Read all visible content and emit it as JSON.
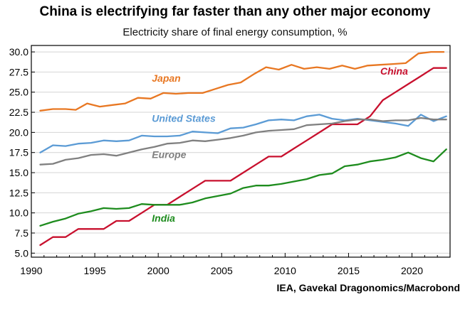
{
  "chart_data": {
    "type": "line",
    "title": "China is electrifying far faster than any other major economy",
    "subtitle": "Electricity share of final energy consumption, %",
    "source": "IEA, Gavekal Dragonomics/Macrobond",
    "xlabel": "",
    "ylabel": "",
    "xlim": [
      1990,
      2023
    ],
    "ylim": [
      4.5,
      30.8
    ],
    "grid": true,
    "x_ticks": [
      1990,
      1995,
      2000,
      2005,
      2010,
      2015,
      2020
    ],
    "y_ticks": [
      "5.0",
      "7.5",
      "10.0",
      "12.5",
      "15.0",
      "17.5",
      "20.0",
      "22.5",
      "25.0",
      "27.5",
      "30.0"
    ],
    "series": [
      {
        "name": "Japan",
        "color": "#e87722",
        "points": [
          [
            1990.7,
            22.7
          ],
          [
            1991.7,
            22.9
          ],
          [
            1992.7,
            22.9
          ],
          [
            1993.5,
            22.8
          ],
          [
            1994.4,
            23.6
          ],
          [
            1995.4,
            23.2
          ],
          [
            1996.4,
            23.4
          ],
          [
            1997.4,
            23.6
          ],
          [
            1998.4,
            24.3
          ],
          [
            1999.4,
            24.2
          ],
          [
            2000.4,
            24.9
          ],
          [
            2001.4,
            24.8
          ],
          [
            2002.4,
            24.9
          ],
          [
            2003.5,
            24.9
          ],
          [
            2004.5,
            25.4
          ],
          [
            2005.5,
            25.9
          ],
          [
            2006.5,
            26.2
          ],
          [
            2007.5,
            27.2
          ],
          [
            2008.5,
            28.1
          ],
          [
            2009.5,
            27.8
          ],
          [
            2010.5,
            28.4
          ],
          [
            2011.5,
            27.9
          ],
          [
            2012.5,
            28.1
          ],
          [
            2013.5,
            27.9
          ],
          [
            2014.5,
            28.3
          ],
          [
            2015.5,
            27.9
          ],
          [
            2016.5,
            28.3
          ],
          [
            2017.5,
            28.4
          ],
          [
            2018.5,
            28.5
          ],
          [
            2019.5,
            28.6
          ],
          [
            2020.5,
            29.8
          ],
          [
            2021.5,
            30.0
          ],
          [
            2022.5,
            30.0
          ]
        ]
      },
      {
        "name": "China",
        "color": "#c8102e",
        "points": [
          [
            1990.7,
            6.0
          ],
          [
            1991.7,
            7.0
          ],
          [
            1992.7,
            7.0
          ],
          [
            1993.7,
            8.0
          ],
          [
            1994.7,
            8.0
          ],
          [
            1995.7,
            8.0
          ],
          [
            1996.7,
            9.0
          ],
          [
            1997.7,
            9.0
          ],
          [
            1998.7,
            10.0
          ],
          [
            1999.7,
            11.0
          ],
          [
            2000.7,
            11.0
          ],
          [
            2001.7,
            12.0
          ],
          [
            2002.7,
            13.0
          ],
          [
            2003.7,
            14.0
          ],
          [
            2004.7,
            14.0
          ],
          [
            2005.7,
            14.0
          ],
          [
            2006.7,
            15.0
          ],
          [
            2007.7,
            16.0
          ],
          [
            2008.7,
            17.0
          ],
          [
            2009.7,
            17.0
          ],
          [
            2010.7,
            18.0
          ],
          [
            2011.7,
            19.0
          ],
          [
            2012.7,
            20.0
          ],
          [
            2013.7,
            21.0
          ],
          [
            2014.7,
            21.0
          ],
          [
            2015.7,
            21.0
          ],
          [
            2016.7,
            22.0
          ],
          [
            2017.7,
            24.0
          ],
          [
            2018.7,
            25.0
          ],
          [
            2019.7,
            26.0
          ],
          [
            2020.7,
            27.0
          ],
          [
            2021.7,
            28.0
          ],
          [
            2022.7,
            28.0
          ]
        ]
      },
      {
        "name": "United States",
        "color": "#5b9bd5",
        "points": [
          [
            1990.7,
            17.5
          ],
          [
            1991.7,
            18.4
          ],
          [
            1992.7,
            18.3
          ],
          [
            1993.7,
            18.6
          ],
          [
            1994.7,
            18.7
          ],
          [
            1995.7,
            19.0
          ],
          [
            1996.7,
            18.9
          ],
          [
            1997.7,
            19.0
          ],
          [
            1998.7,
            19.6
          ],
          [
            1999.7,
            19.5
          ],
          [
            2000.7,
            19.5
          ],
          [
            2001.7,
            19.6
          ],
          [
            2002.7,
            20.1
          ],
          [
            2003.7,
            20.0
          ],
          [
            2004.7,
            19.9
          ],
          [
            2005.7,
            20.5
          ],
          [
            2006.7,
            20.6
          ],
          [
            2007.7,
            21.0
          ],
          [
            2008.7,
            21.5
          ],
          [
            2009.7,
            21.6
          ],
          [
            2010.7,
            21.5
          ],
          [
            2011.7,
            22.0
          ],
          [
            2012.7,
            22.2
          ],
          [
            2013.7,
            21.7
          ],
          [
            2014.7,
            21.5
          ],
          [
            2015.7,
            21.7
          ],
          [
            2016.7,
            21.5
          ],
          [
            2017.7,
            21.3
          ],
          [
            2018.7,
            21.1
          ],
          [
            2019.7,
            20.8
          ],
          [
            2020.7,
            22.2
          ],
          [
            2021.7,
            21.4
          ],
          [
            2022.7,
            22.0
          ]
        ]
      },
      {
        "name": "Europe",
        "color": "#808080",
        "points": [
          [
            1990.7,
            16.0
          ],
          [
            1991.7,
            16.1
          ],
          [
            1992.7,
            16.6
          ],
          [
            1993.7,
            16.8
          ],
          [
            1994.7,
            17.2
          ],
          [
            1995.7,
            17.3
          ],
          [
            1996.7,
            17.1
          ],
          [
            1997.7,
            17.5
          ],
          [
            1998.7,
            17.9
          ],
          [
            1999.7,
            18.2
          ],
          [
            2000.7,
            18.6
          ],
          [
            2001.7,
            18.7
          ],
          [
            2002.7,
            19.0
          ],
          [
            2003.7,
            18.9
          ],
          [
            2004.7,
            19.1
          ],
          [
            2005.7,
            19.3
          ],
          [
            2006.7,
            19.6
          ],
          [
            2007.7,
            20.0
          ],
          [
            2008.7,
            20.2
          ],
          [
            2009.7,
            20.3
          ],
          [
            2010.7,
            20.4
          ],
          [
            2011.7,
            20.9
          ],
          [
            2012.7,
            21.0
          ],
          [
            2013.7,
            21.1
          ],
          [
            2014.7,
            21.4
          ],
          [
            2015.7,
            21.6
          ],
          [
            2016.7,
            21.6
          ],
          [
            2017.7,
            21.4
          ],
          [
            2018.7,
            21.5
          ],
          [
            2019.7,
            21.5
          ],
          [
            2020.7,
            21.8
          ],
          [
            2021.7,
            21.6
          ],
          [
            2022.7,
            21.6
          ]
        ]
      },
      {
        "name": "India",
        "color": "#1e8c1e",
        "points": [
          [
            1990.7,
            8.4
          ],
          [
            1991.7,
            8.9
          ],
          [
            1992.7,
            9.3
          ],
          [
            1993.7,
            9.9
          ],
          [
            1994.7,
            10.2
          ],
          [
            1995.7,
            10.6
          ],
          [
            1996.7,
            10.5
          ],
          [
            1997.7,
            10.6
          ],
          [
            1998.7,
            11.1
          ],
          [
            1999.7,
            11.0
          ],
          [
            2000.7,
            11.0
          ],
          [
            2001.7,
            11.0
          ],
          [
            2002.7,
            11.3
          ],
          [
            2003.7,
            11.8
          ],
          [
            2004.7,
            12.1
          ],
          [
            2005.7,
            12.4
          ],
          [
            2006.7,
            13.1
          ],
          [
            2007.7,
            13.4
          ],
          [
            2008.7,
            13.4
          ],
          [
            2009.7,
            13.6
          ],
          [
            2010.7,
            13.9
          ],
          [
            2011.7,
            14.2
          ],
          [
            2012.7,
            14.7
          ],
          [
            2013.7,
            14.9
          ],
          [
            2014.7,
            15.8
          ],
          [
            2015.7,
            16.0
          ],
          [
            2016.7,
            16.4
          ],
          [
            2017.7,
            16.6
          ],
          [
            2018.7,
            16.9
          ],
          [
            2019.7,
            17.5
          ],
          [
            2020.7,
            16.8
          ],
          [
            2021.7,
            16.4
          ],
          [
            2022.7,
            17.9
          ]
        ]
      }
    ],
    "annotations": [
      {
        "series": "Japan",
        "text": "Japan",
        "x": 1999.5,
        "y": 26.3
      },
      {
        "series": "China",
        "text": "China",
        "x": 2017.5,
        "y": 27.2
      },
      {
        "series": "United States",
        "text": "United States",
        "x": 1999.5,
        "y": 21.3
      },
      {
        "series": "Europe",
        "text": "Europe",
        "x": 1999.5,
        "y": 16.8
      },
      {
        "series": "India",
        "text": "India",
        "x": 1999.5,
        "y": 8.9
      }
    ]
  }
}
